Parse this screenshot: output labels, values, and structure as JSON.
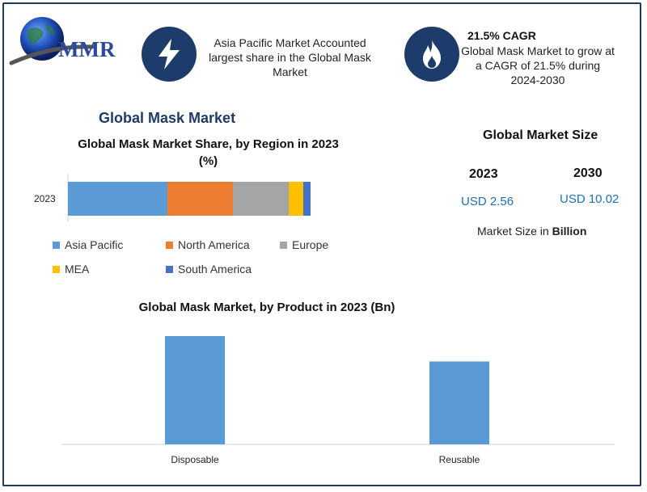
{
  "logo": {
    "text": "MMR"
  },
  "info1": {
    "text": "Asia Pacific Market Accounted largest share in the Global Mask Market"
  },
  "info2": {
    "title": "21.5% CAGR",
    "text": "Global Mask Market to grow at a CAGR of 21.5% during 2024-2030"
  },
  "section_title": "Global Mask Market",
  "market_size": {
    "title": "Global Market Size",
    "year1": "2023",
    "year2": "2030",
    "value1": "USD 2.56",
    "value2": "USD 10.02",
    "note_prefix": "Market Size in",
    "note_unit": "Billion"
  },
  "colors": {
    "accent": "#1e3c6b",
    "asia_pacific": "#5b9bd5",
    "north_america": "#ed7d31",
    "europe": "#a5a5a5",
    "mea": "#ffc000",
    "south_america": "#4472c4",
    "bar": "#5b9bd5"
  },
  "chart_data": [
    {
      "type": "bar",
      "orientation": "horizontal",
      "stacked": true,
      "title": "Global Mask Market Share, by Region in 2023 (%)",
      "categories": [
        "2023"
      ],
      "series": [
        {
          "name": "Asia Pacific",
          "values": [
            41
          ]
        },
        {
          "name": "North America",
          "values": [
            27
          ]
        },
        {
          "name": "Europe",
          "values": [
            23
          ]
        },
        {
          "name": "MEA",
          "values": [
            6
          ]
        },
        {
          "name": "South America",
          "values": [
            3
          ]
        }
      ],
      "xlim": [
        0,
        100
      ],
      "legend": "bottom",
      "grid": false
    },
    {
      "type": "bar",
      "title": "Global Mask Market, by Product in 2023 (Bn)",
      "categories": [
        "Disposable",
        "Reusable"
      ],
      "values": [
        1.45,
        1.11
      ],
      "grid": false
    }
  ]
}
